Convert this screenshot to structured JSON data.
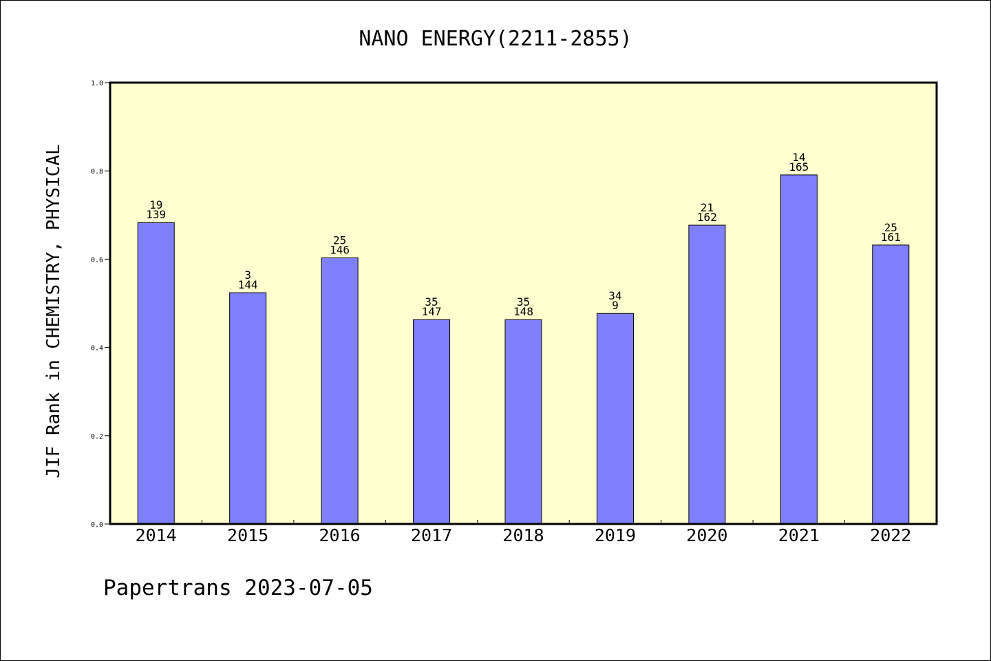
{
  "chart_data": {
    "type": "bar",
    "title": "NANO ENERGY(2211-2855)",
    "ylabel": "JIF Rank in CHEMISTRY, PHYSICAL",
    "xlabel": "",
    "categories": [
      "2014",
      "2015",
      "2016",
      "2017",
      "2018",
      "2019",
      "2020",
      "2021",
      "2022"
    ],
    "values": [
      0.683,
      0.524,
      0.603,
      0.463,
      0.463,
      0.477,
      0.677,
      0.791,
      0.632
    ],
    "labels_top": [
      "19",
      "3",
      "25",
      "35",
      "35",
      "34",
      "21",
      "14",
      "25"
    ],
    "labels_bottom": [
      "139",
      "144",
      "146",
      "147",
      "148",
      "9",
      "162",
      "165",
      "161"
    ],
    "ylim": [
      0,
      1
    ],
    "yticks": [
      "0.0",
      "0.2",
      "0.4",
      "0.6",
      "0.8",
      "1.0"
    ],
    "grid": false,
    "colors": {
      "plot_background": "#ffffd0",
      "bar_fill": "#8080ff",
      "bar_stroke": "#000000",
      "axis": "#000000"
    }
  },
  "footer": {
    "credit": "Papertrans 2023-07-05"
  }
}
